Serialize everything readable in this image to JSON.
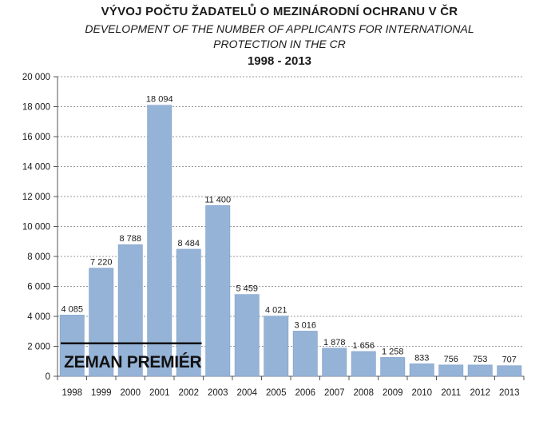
{
  "chart_data": {
    "type": "bar",
    "title": "VÝVOJ POČTU ŽADATELŮ O MEZINÁRODNÍ OCHRANU V ČR",
    "subtitle": "DEVELOPMENT OF THE NUMBER OF APPLICANTS FOR INTERNATIONAL PROTECTION IN THE CR",
    "period": "1998 - 2013",
    "categories": [
      "1998",
      "1999",
      "2000",
      "2001",
      "2002",
      "2003",
      "2004",
      "2005",
      "2006",
      "2007",
      "2008",
      "2009",
      "2010",
      "2011",
      "2012",
      "2013"
    ],
    "values": [
      4085,
      7220,
      8788,
      18094,
      8484,
      11400,
      5459,
      4021,
      3016,
      1878,
      1656,
      1258,
      833,
      756,
      753,
      707
    ],
    "data_labels": [
      "4 085",
      "7 220",
      "8 788",
      "18 094",
      "8 484",
      "11 400",
      "5 459",
      "4 021",
      "3 016",
      "1 878",
      "1 656",
      "1 258",
      "833",
      "756",
      "753",
      "707"
    ],
    "yticks": [
      "0",
      "2 000",
      "4 000",
      "6 000",
      "8 000",
      "10 000",
      "12 000",
      "14 000",
      "16 000",
      "18 000",
      "20 000"
    ],
    "ylim": [
      0,
      20000
    ],
    "xlabel": "",
    "ylabel": "",
    "grid": true,
    "bar_color": "#95b3d7",
    "annotation": {
      "text": "ZEMAN PREMIÉR",
      "from": "1998",
      "to": "2002",
      "value": 2200
    }
  }
}
